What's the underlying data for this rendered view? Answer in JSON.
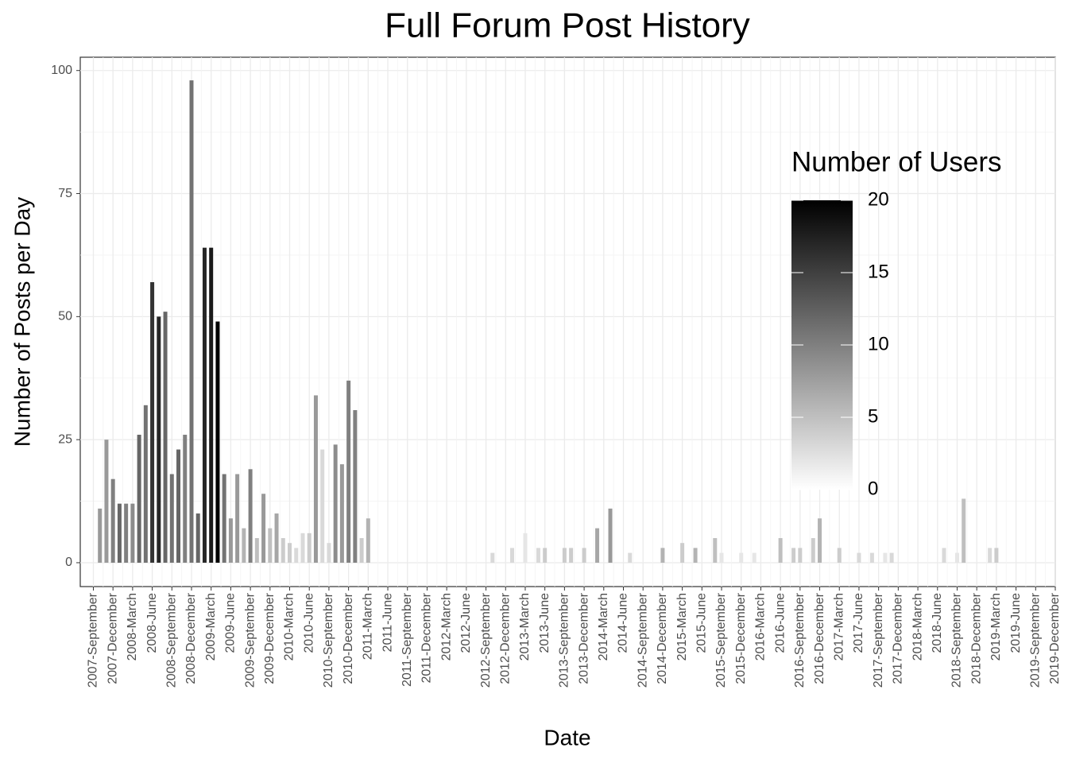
{
  "chart_data": {
    "type": "bar",
    "title": "Full Forum Post History",
    "x_label": "Date",
    "y_label": "Number of Posts per Day",
    "legend_title": "Number of Users",
    "legend_position": "right",
    "grid": true,
    "color_low": "#ffffff",
    "color_high": "#000000",
    "clim": [
      0,
      20
    ],
    "cticks": [
      0,
      5,
      10,
      15,
      20
    ],
    "ylim": [
      -4.85,
      102.7
    ],
    "yticks": [
      0,
      25,
      50,
      75,
      100
    ],
    "xlim": [
      "2007-07",
      "2019-12"
    ],
    "xticks": [
      {
        "value": "2007-09",
        "label": "2007-September"
      },
      {
        "value": "2007-12",
        "label": "2007-December"
      },
      {
        "value": "2008-03",
        "label": "2008-March"
      },
      {
        "value": "2008-06",
        "label": "2008-June"
      },
      {
        "value": "2008-09",
        "label": "2008-September"
      },
      {
        "value": "2008-12",
        "label": "2008-December"
      },
      {
        "value": "2009-03",
        "label": "2009-March"
      },
      {
        "value": "2009-06",
        "label": "2009-June"
      },
      {
        "value": "2009-09",
        "label": "2009-September"
      },
      {
        "value": "2009-12",
        "label": "2009-December"
      },
      {
        "value": "2010-03",
        "label": "2010-March"
      },
      {
        "value": "2010-06",
        "label": "2010-June"
      },
      {
        "value": "2010-09",
        "label": "2010-September"
      },
      {
        "value": "2010-12",
        "label": "2010-December"
      },
      {
        "value": "2011-03",
        "label": "2011-March"
      },
      {
        "value": "2011-06",
        "label": "2011-June"
      },
      {
        "value": "2011-09",
        "label": "2011-September"
      },
      {
        "value": "2011-12",
        "label": "2011-December"
      },
      {
        "value": "2012-03",
        "label": "2012-March"
      },
      {
        "value": "2012-06",
        "label": "2012-June"
      },
      {
        "value": "2012-09",
        "label": "2012-September"
      },
      {
        "value": "2012-12",
        "label": "2012-December"
      },
      {
        "value": "2013-03",
        "label": "2013-March"
      },
      {
        "value": "2013-06",
        "label": "2013-June"
      },
      {
        "value": "2013-09",
        "label": "2013-September"
      },
      {
        "value": "2013-12",
        "label": "2013-December"
      },
      {
        "value": "2014-03",
        "label": "2014-March"
      },
      {
        "value": "2014-06",
        "label": "2014-June"
      },
      {
        "value": "2014-09",
        "label": "2014-September"
      },
      {
        "value": "2014-12",
        "label": "2014-December"
      },
      {
        "value": "2015-03",
        "label": "2015-March"
      },
      {
        "value": "2015-06",
        "label": "2015-June"
      },
      {
        "value": "2015-09",
        "label": "2015-September"
      },
      {
        "value": "2015-12",
        "label": "2015-December"
      },
      {
        "value": "2016-03",
        "label": "2016-March"
      },
      {
        "value": "2016-06",
        "label": "2016-June"
      },
      {
        "value": "2016-09",
        "label": "2016-September"
      },
      {
        "value": "2016-12",
        "label": "2016-December"
      },
      {
        "value": "2017-03",
        "label": "2017-March"
      },
      {
        "value": "2017-06",
        "label": "2017-June"
      },
      {
        "value": "2017-09",
        "label": "2017-September"
      },
      {
        "value": "2017-12",
        "label": "2017-December"
      },
      {
        "value": "2018-03",
        "label": "2018-March"
      },
      {
        "value": "2018-06",
        "label": "2018-June"
      },
      {
        "value": "2018-09",
        "label": "2018-September"
      },
      {
        "value": "2018-12",
        "label": "2018-December"
      },
      {
        "value": "2019-03",
        "label": "2019-March"
      },
      {
        "value": "2019-06",
        "label": "2019-June"
      },
      {
        "value": "2019-09",
        "label": "2019-September"
      },
      {
        "value": "2019-12",
        "label": "2019-December"
      }
    ],
    "x": [
      "2007-10",
      "2007-11",
      "2007-12",
      "2008-01",
      "2008-02",
      "2008-03",
      "2008-04",
      "2008-05",
      "2008-06",
      "2008-07",
      "2008-08",
      "2008-09",
      "2008-10",
      "2008-11",
      "2008-12",
      "2009-01",
      "2009-02",
      "2009-03",
      "2009-04",
      "2009-05",
      "2009-06",
      "2009-07",
      "2009-08",
      "2009-09",
      "2009-10",
      "2009-11",
      "2009-12",
      "2010-01",
      "2010-02",
      "2010-03",
      "2010-04",
      "2010-05",
      "2010-06",
      "2010-07",
      "2010-08",
      "2010-09",
      "2010-10",
      "2010-11",
      "2010-12",
      "2011-01",
      "2011-02",
      "2011-03",
      "2012-10",
      "2013-01",
      "2013-03",
      "2013-05",
      "2013-06",
      "2013-09",
      "2013-10",
      "2013-12",
      "2014-02",
      "2014-04",
      "2014-07",
      "2014-12",
      "2015-03",
      "2015-05",
      "2015-08",
      "2015-09",
      "2015-12",
      "2016-02",
      "2016-06",
      "2016-08",
      "2016-09",
      "2016-11",
      "2016-12",
      "2017-03",
      "2017-06",
      "2017-08",
      "2017-10",
      "2017-11",
      "2018-07",
      "2018-09",
      "2018-10",
      "2019-02",
      "2019-03"
    ],
    "values": [
      11,
      25,
      17,
      12,
      12,
      12,
      26,
      32,
      57,
      50,
      51,
      18,
      23,
      26,
      98,
      10,
      64,
      64,
      49,
      18,
      9,
      18,
      7,
      19,
      5,
      14,
      7,
      10,
      5,
      4,
      3,
      6,
      6,
      34,
      23,
      4,
      24,
      20,
      37,
      31,
      5,
      9,
      2,
      3,
      6,
      3,
      3,
      3,
      3,
      3,
      7,
      11,
      2,
      3,
      4,
      3,
      5,
      2,
      2,
      2,
      5,
      3,
      3,
      5,
      9,
      3,
      2,
      2,
      2,
      2,
      3,
      2,
      13,
      3,
      3
    ],
    "users": [
      8,
      8,
      10,
      12,
      10,
      9,
      12,
      11,
      16,
      17,
      12,
      11,
      12,
      10,
      11,
      12,
      17,
      18,
      20,
      11,
      8,
      8,
      6,
      10,
      5,
      8,
      5,
      7,
      4,
      4,
      3,
      3,
      4,
      8,
      3,
      3,
      9,
      8,
      10,
      10,
      4,
      6,
      3,
      3,
      2,
      3,
      4,
      4,
      4,
      4,
      7,
      8,
      3,
      6,
      4,
      6,
      5,
      2,
      2,
      2,
      5,
      4,
      4,
      4,
      6,
      4,
      3,
      3,
      2,
      3,
      3,
      2,
      5,
      3,
      4
    ]
  }
}
